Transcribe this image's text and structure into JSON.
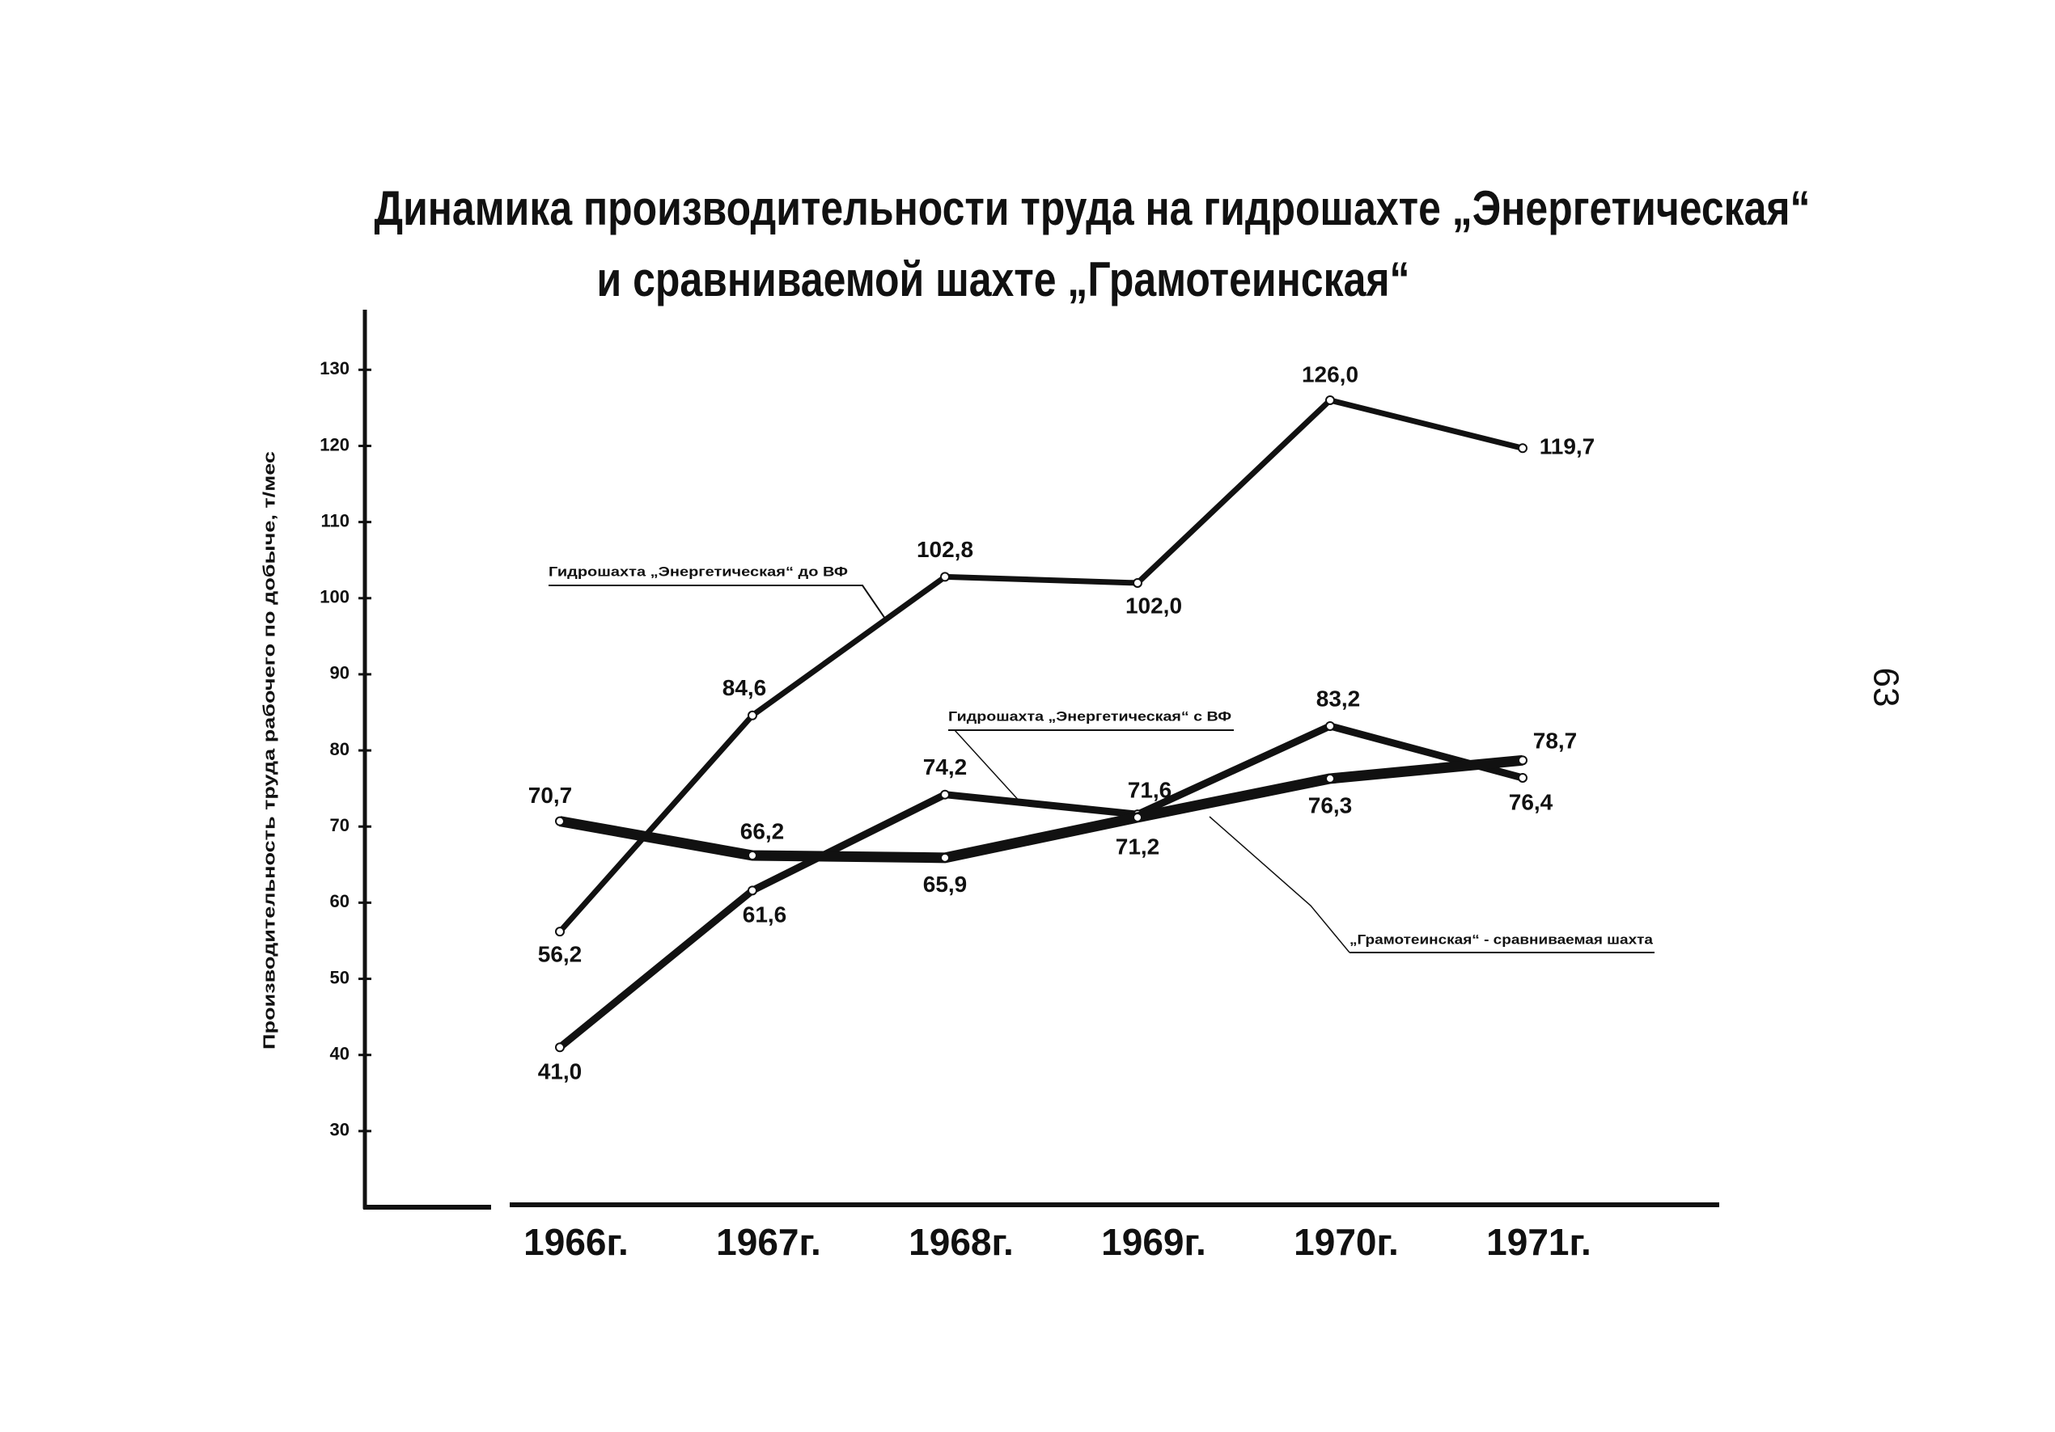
{
  "chart_data": {
    "type": "line",
    "title": [
      "Динамика производительности труда на гидрошахте „Энергетическая“",
      "и сравниваемой шахте „Грамотеинская“"
    ],
    "y_label": "Производительность труда рабочего по добыче, т/мес",
    "page_number": "63",
    "categories": [
      "1966г.",
      "1967г.",
      "1968г.",
      "1969г.",
      "1970г.",
      "1971г."
    ],
    "series": [
      {
        "name": "Гидрошахта „Энергетическая“ до ВФ",
        "color": "#111111",
        "values": [
          56.2,
          84.6,
          102.8,
          102.0,
          126.0,
          119.7
        ],
        "value_labels": [
          "56,2",
          "84,6",
          "102,8",
          "102,0",
          "126,0",
          "119,7"
        ]
      },
      {
        "name": "Гидрошахта „Энергетическая“ с ВФ",
        "color": "#111111",
        "values": [
          41.0,
          61.6,
          74.2,
          71.6,
          83.2,
          76.4
        ],
        "value_labels": [
          "41,0",
          "61,6",
          "74,2",
          "71,6",
          "83,2",
          "76,4"
        ]
      },
      {
        "name": "„Грамотеинская“ - сравниваемая шахта",
        "color": "#111111",
        "values": [
          70.7,
          66.2,
          65.9,
          71.2,
          76.3,
          78.7
        ],
        "value_labels": [
          "70,7",
          "66,2",
          "65,9",
          "71,2",
          "76,3",
          "78,7"
        ]
      }
    ],
    "ylim": [
      20,
      138
    ],
    "yticks": [
      30,
      40,
      50,
      60,
      70,
      80,
      90,
      100,
      110,
      120,
      130
    ]
  }
}
